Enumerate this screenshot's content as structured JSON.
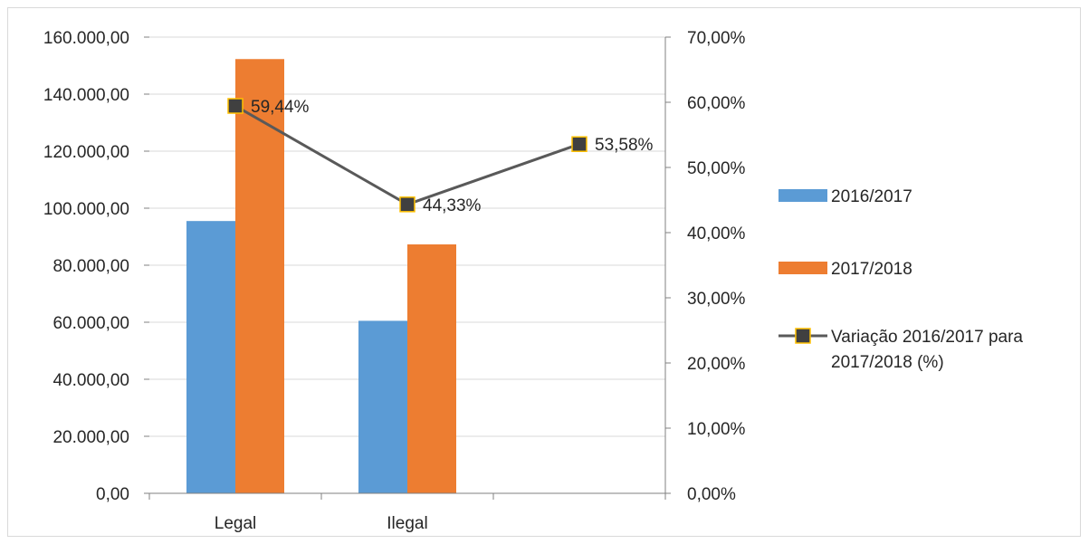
{
  "chart_data": {
    "type": "bar",
    "categories": [
      "Legal",
      "Ilegal",
      ""
    ],
    "series": [
      {
        "name": "2016/2017",
        "type": "bar",
        "axis": "left",
        "color": "#5b9bd5",
        "values": [
          95500,
          60500,
          null
        ]
      },
      {
        "name": "2017/2018",
        "type": "bar",
        "axis": "left",
        "color": "#ed7d31",
        "values": [
          152300,
          87300,
          null
        ]
      },
      {
        "name": "Variação 2016/2017 para 2017/2018 (%)",
        "type": "line",
        "axis": "right",
        "color": "#595959",
        "marker_color": "#404040",
        "marker_border": "#ffc000",
        "values": [
          59.44,
          44.33,
          53.58
        ],
        "labels": [
          "59,44%",
          "44,33%",
          "53,58%"
        ]
      }
    ],
    "ylim": [
      0,
      160000
    ],
    "y2lim": [
      0,
      70
    ],
    "left_ticks": [
      "0,00",
      "20.000,00",
      "40.000,00",
      "60.000,00",
      "80.000,00",
      "100.000,00",
      "120.000,00",
      "140.000,00",
      "160.000,00"
    ],
    "right_ticks": [
      "0,00%",
      "10,00%",
      "20,00%",
      "30,00%",
      "40,00%",
      "50,00%",
      "60,00%",
      "70,00%"
    ],
    "grid": true,
    "legend_position": "right"
  }
}
